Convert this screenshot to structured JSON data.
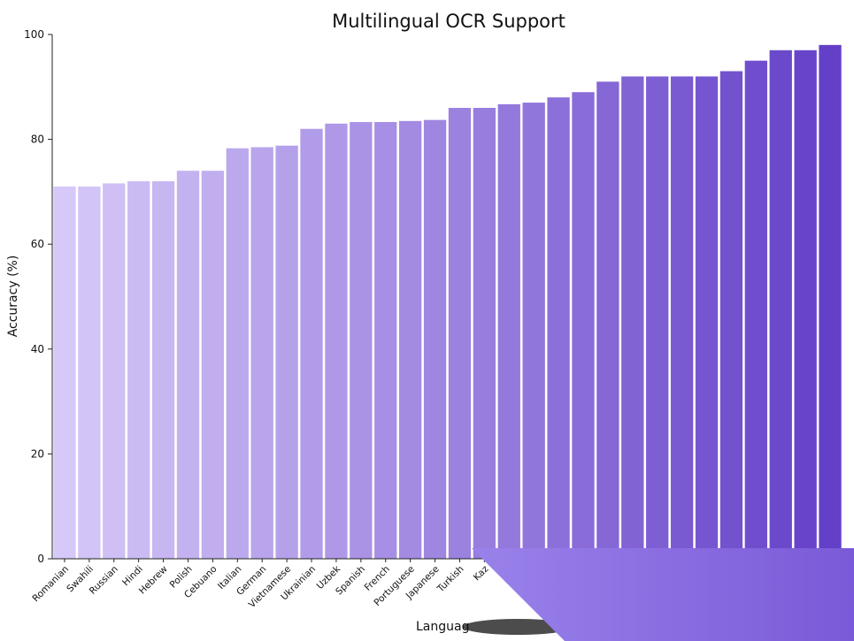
{
  "chart_data": {
    "type": "bar",
    "title": "Multilingual OCR Support",
    "xlabel": "Languag",
    "ylabel": "Accuracy (%)",
    "ylim": [
      0,
      100
    ],
    "yticks": [
      0,
      20,
      40,
      60,
      80,
      100
    ],
    "grid": false,
    "legend": "none",
    "categories": [
      "Romanian",
      "Swahili",
      "Russian",
      "Hindi",
      "Hebrew",
      "Polish",
      "Cebuano",
      "Italian",
      "German",
      "Vietnamese",
      "Ukrainian",
      "Uzbek",
      "Spanish",
      "French",
      "Portuguese",
      "Japanese",
      "Turkish",
      "Kaz",
      "",
      "",
      "",
      "",
      "",
      "",
      "",
      "",
      "",
      "",
      "",
      "",
      "",
      ""
    ],
    "values": [
      71.0,
      71.0,
      71.6,
      72.0,
      72.0,
      74.0,
      74.0,
      78.3,
      78.5,
      78.8,
      82.0,
      83.0,
      83.3,
      83.3,
      83.5,
      83.7,
      86.0,
      86.0,
      86.7,
      87.0,
      88.0,
      89.0,
      91.0,
      92.0,
      92.0,
      92.0,
      92.0,
      93.0,
      95.0,
      97.0,
      97.0,
      98.0
    ],
    "colors": {
      "light": "#d6c8f8",
      "dark": "#6440c8"
    }
  }
}
